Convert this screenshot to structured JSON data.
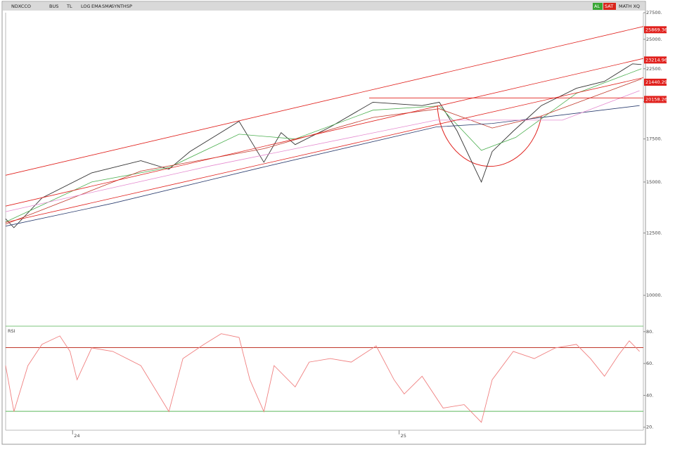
{
  "toolbar": {
    "left": [
      "NDXCCO",
      "BUS",
      "TL",
      "LOG",
      "EMA",
      "SMA",
      "SYNTHSP"
    ],
    "right": [
      "AL",
      "SAT",
      "MATH XQ"
    ]
  },
  "chart_data": [
    {
      "type": "line",
      "log_scale": true,
      "xlim": [
        0,
        100
      ],
      "ylim": [
        9000,
        27500
      ],
      "yticks": [
        {
          "value": 10000,
          "label": "10000."
        },
        {
          "value": 12500,
          "label": "12500."
        },
        {
          "value": 15000,
          "label": "15000."
        },
        {
          "value": 17500,
          "label": "17500."
        },
        {
          "value": 20000,
          "label": "20000."
        },
        {
          "value": 22500,
          "label": "22500."
        },
        {
          "value": 25000,
          "label": "25000."
        },
        {
          "value": 27500,
          "label": "27500."
        }
      ],
      "price_labels": [
        25869.36,
        23214.96,
        21440.29,
        20158.26
      ],
      "price_label_color": "#e0201c",
      "series": [
        {
          "color": "#333333",
          "x": [
            0,
            1.3,
            5.7,
            13.5,
            21.2,
            25.6,
            28.9,
            36.6,
            40.5,
            43.2,
            45.4,
            50.9,
            57.6,
            65.3,
            68.0,
            70.8,
            74.6,
            76.3,
            79.6,
            84.0,
            89.5,
            93.9,
            98.3,
            99.7
          ],
          "values": [
            13150,
            12740,
            14170,
            15500,
            16190,
            15700,
            16730,
            18640,
            16100,
            17900,
            17150,
            18270,
            19960,
            19720,
            19960,
            18000,
            15000,
            16730,
            18000,
            19720,
            20980,
            21510,
            22900,
            22840
          ]
        },
        {
          "color": "#4caf50",
          "x": [
            0,
            13.5,
            25.6,
            36.6,
            45.4,
            57.6,
            68.0,
            74.6,
            80.0,
            89.5,
            99.7
          ],
          "values": [
            13000,
            15000,
            15800,
            17800,
            17500,
            19400,
            19700,
            16800,
            17600,
            20600,
            22500
          ]
        },
        {
          "color": "#c0392b",
          "x": [
            0,
            21.2,
            40.5,
            57.6,
            68.0,
            76.3,
            84.0,
            99.7
          ],
          "values": [
            12900,
            15600,
            16900,
            18900,
            19500,
            18200,
            19000,
            21700
          ]
        },
        {
          "color": "#2c3e70",
          "x": [
            0,
            16.8,
            39.9,
            67.5,
            76.3,
            99.4
          ],
          "values": [
            12810,
            13900,
            15780,
            18270,
            18500,
            19720
          ]
        },
        {
          "color": "#e58bd0",
          "x": [
            0,
            32.2,
            67.5,
            87.3,
            99.4
          ],
          "values": [
            13490,
            15900,
            18720,
            18720,
            20800
          ]
        },
        {
          "color": "#e0201c",
          "x": [
            0,
            100
          ],
          "values": [
            15370,
            26170
          ]
        },
        {
          "color": "#e0201c",
          "x": [
            0,
            100
          ],
          "values": [
            13760,
            23340
          ]
        },
        {
          "color": "#e0201c",
          "x": [
            0,
            100
          ],
          "values": [
            12980,
            21790
          ]
        },
        {
          "color": "#e0201c",
          "x": [
            57,
            100
          ],
          "values": [
            20270,
            20270
          ]
        }
      ]
    },
    {
      "type": "line",
      "title": "RSI",
      "xlim": [
        0,
        100
      ],
      "ylim": [
        19,
        83
      ],
      "yticks": [
        {
          "value": 20,
          "label": "20."
        },
        {
          "value": 40,
          "label": "40."
        },
        {
          "value": 60,
          "label": "60."
        },
        {
          "value": 80,
          "label": "80."
        }
      ],
      "xticks": [
        {
          "value": 10.5,
          "label": "24"
        },
        {
          "value": 61.7,
          "label": "25"
        }
      ],
      "reference_lines": [
        {
          "value": 70,
          "color": "#c0392b"
        },
        {
          "value": 30,
          "color": "#5cb85c"
        }
      ],
      "series": [
        {
          "color": "#f08080",
          "x": [
            0,
            1.3,
            3.5,
            5.7,
            8.5,
            10.1,
            11.2,
            13.5,
            16.8,
            21.2,
            25.6,
            27.8,
            31.1,
            33.8,
            36.6,
            38.3,
            40.5,
            42.1,
            45.4,
            47.6,
            50.9,
            54.2,
            58.1,
            60.9,
            62.5,
            65.3,
            68.6,
            71.9,
            74.6,
            76.3,
            79.6,
            82.9,
            86.2,
            89.5,
            91.7,
            93.9,
            96.1,
            97.8,
            99.4
          ],
          "values": [
            58.7,
            29.8,
            58.7,
            72.0,
            77.3,
            67.6,
            49.8,
            69.8,
            67.6,
            58.7,
            29.8,
            63.1,
            72.0,
            78.7,
            76.4,
            49.8,
            29.8,
            58.7,
            45.3,
            60.9,
            63.1,
            60.9,
            71.1,
            49.8,
            40.9,
            52.0,
            32.0,
            34.2,
            23.1,
            49.8,
            67.6,
            63.1,
            69.8,
            72.0,
            63.1,
            52.0,
            65.3,
            74.2,
            67.6
          ]
        }
      ]
    }
  ]
}
